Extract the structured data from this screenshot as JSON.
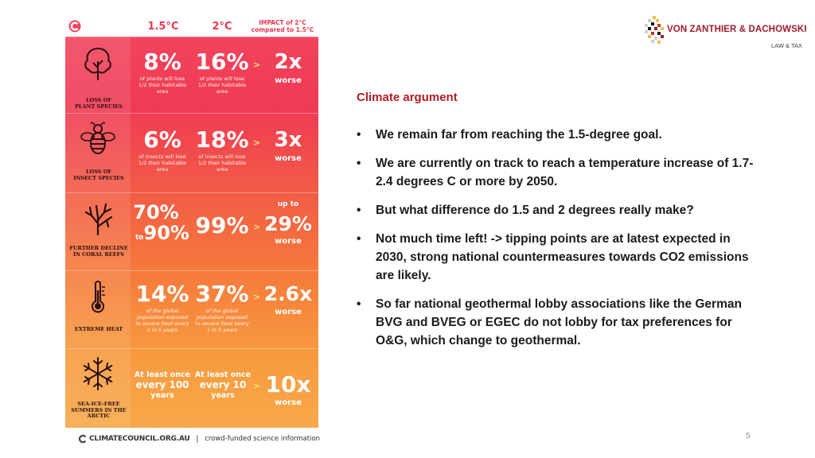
{
  "infographic": {
    "header": {
      "col_15": "1.5°C",
      "col_2": "2°C",
      "impact_line1": "IMPACT of 2°C",
      "impact_line2": "compared to 1.5°C"
    },
    "rows": [
      {
        "icon": "tree-icon",
        "category_line1": "LOSS OF",
        "category_line2": "PLANT SPECIES",
        "v15": "8%",
        "v15_note": [
          "of plants will lose",
          "1/2 their habitable",
          "area"
        ],
        "v2": "16%",
        "v2_note": [
          "of plants will lose",
          "1/2 their habitable",
          "area"
        ],
        "multiplier": "2x",
        "worse": "worse"
      },
      {
        "icon": "bee-icon",
        "category_line1": "LOSS OF",
        "category_line2": "INSECT SPECIES",
        "v15": "6%",
        "v15_note": [
          "of insects will lose",
          "1/2 their habitable",
          "area"
        ],
        "v2": "18%",
        "v2_note": [
          "of insects will lose",
          "1/2 their habitable",
          "area"
        ],
        "multiplier": "3x",
        "worse": "worse"
      },
      {
        "icon": "coral-icon",
        "category_line1": "FURTHER DECLINE",
        "category_line2": "IN CORAL REEFS",
        "v15_a": "70%",
        "v15_to": "to",
        "v15_b": "90%",
        "v2": "99%",
        "up_to": "up to",
        "multiplier": "29%",
        "worse": "worse"
      },
      {
        "icon": "thermometer-icon",
        "category_line1": "EXTREME HEAT",
        "v15": "14%",
        "v15_note": [
          "of the global",
          "population exposed",
          "to severe heat every",
          "1 in 5 years"
        ],
        "v2": "37%",
        "v2_note": [
          "of the global",
          "population exposed",
          "to severe heat every",
          "1 in 5 years"
        ],
        "multiplier": "2.6x",
        "worse": "worse"
      },
      {
        "icon": "snowflake-icon",
        "category_line1": "SEA-ICE-FREE",
        "category_line2": "SUMMERS IN THE",
        "category_line3": "ARCTIC",
        "v15_lines": [
          "At least once",
          "every 100",
          "years"
        ],
        "v2_lines": [
          "At least once",
          "every 10",
          "years"
        ],
        "multiplier": "10x",
        "worse": "worse"
      }
    ],
    "arrow": ">",
    "source": {
      "name": "CLIMATECOUNCIL.ORG.AU",
      "separator": "|",
      "tagline": "crowd-funded science information"
    }
  },
  "logo": {
    "name": "VON ZANTHIER & DACHOWSKI",
    "subtitle": "LAW & TAX"
  },
  "content": {
    "heading": "Climate argument",
    "bullet_marker": "•",
    "bullets": [
      "We remain far from reaching the 1.5-degree goal.",
      "We are currently on track to reach a temperature increase of 1.7-2.4 degrees C or more by 2050.",
      "But what difference do 1.5 and 2 degrees really make?",
      "Not much time left! -> tipping points are at latest expected in 2030, strong national countermeasures towards CO2 emissions are likely.",
      "So far national geothermal lobby associations like the German BVG and BVEG or EGEC do not lobby for tax preferences for O&G, which change to geothermal."
    ]
  },
  "page_number": "5",
  "colors": {
    "accent_red": "#b01e24",
    "infographic_top": "#f2475f",
    "infographic_bottom": "#f7a84a",
    "highlight_yellow": "#ffe27a"
  }
}
